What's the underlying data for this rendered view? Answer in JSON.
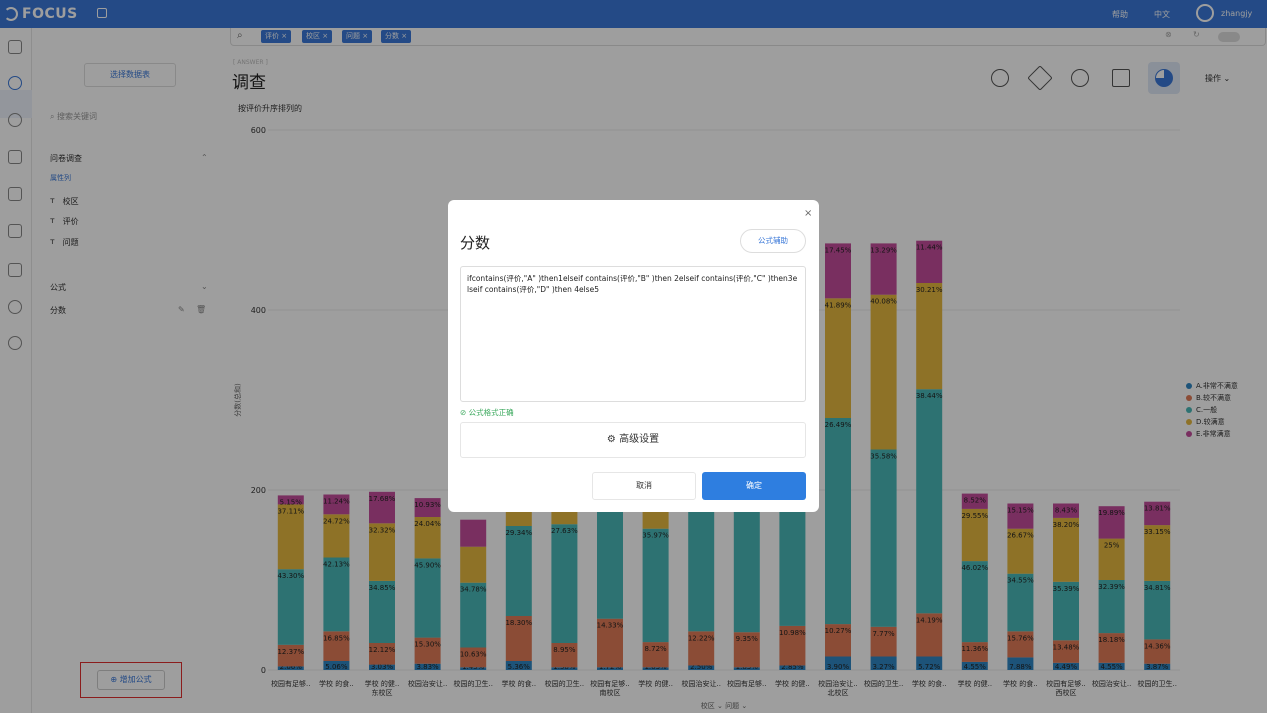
{
  "app": {
    "logo": "FOCUS",
    "help": "帮助",
    "language": "中文",
    "username": "zhangjy"
  },
  "sidebar": {
    "select_data_label": "选择数据表",
    "search_placeholder": "搜索关键词",
    "table_section": "问卷调查",
    "attribute_label": "属性列",
    "fields": [
      "校区",
      "评价",
      "问题"
    ],
    "field_type_icon": "T-icon",
    "formula_section": "公式",
    "formulas": [
      {
        "name": "分数"
      }
    ],
    "add_formula_label": "增加公式"
  },
  "search_chips": [
    "评价 ×",
    "校区 ×",
    "问题 ×",
    "分数 ×"
  ],
  "main": {
    "answer_tag": "[ ANSWER ]",
    "title": "调查",
    "operate_label": "操作",
    "sort_note": "按评价升序排列的",
    "toolbar_icons": [
      "comment-icon",
      "pin-icon",
      "settings-icon",
      "table-icon",
      "pie-chart-icon"
    ]
  },
  "chart_data": {
    "type": "stacked-bar",
    "ylabel": "分数(总和)",
    "ylim": [
      0,
      600
    ],
    "yticks": [
      0,
      200,
      400,
      600
    ],
    "grid": true,
    "legend_position": "right",
    "categories": [
      "校园有足够..",
      "学校 的食..",
      "学校 的健..",
      "校园治安让..",
      "校园的卫生..",
      "学校 的食..",
      "校园的卫生..",
      "校园有足够..",
      "学校 的健..",
      "校园治安让..",
      "校园有足够..",
      "学校 的健..",
      "校园治安让..",
      "校园的卫生..",
      "学校 的食..",
      "学校 的健..",
      "学校 的食..",
      "校园有足够..",
      "校园治安让..",
      "校园的卫生.."
    ],
    "groups": [
      {
        "label": "东校区",
        "start": 0,
        "end": 4
      },
      {
        "label": "南校区",
        "start": 5,
        "end": 9
      },
      {
        "label": "北校区",
        "start": 10,
        "end": 14
      },
      {
        "label": "西校区",
        "start": 15,
        "end": 19
      }
    ],
    "x_axis_title": "校区 ⌄ 问题 ⌄",
    "colors": [
      "#2f86c3",
      "#e07b57",
      "#4ab9b9",
      "#e5b840",
      "#c34c9c"
    ],
    "series": [
      {
        "name": "A.非常不满意",
        "values": [
          4,
          10,
          6,
          7,
          3,
          10,
          3,
          3,
          3,
          5,
          3,
          5,
          15,
          15,
          15,
          9,
          14,
          8,
          8,
          7
        ],
        "labels": [
          "2.06%",
          "5.06%",
          "3.03%",
          "3.83%",
          "1.45%",
          "5.36%",
          "1.58%",
          "1.72%",
          "1.63%",
          "2.50%",
          "1.83%",
          "2.85%",
          "3.90%",
          "3.27%",
          "5.72%",
          "4.55%",
          "7.88%",
          "4.49%",
          "4.55%",
          "3.87%"
        ]
      },
      {
        "name": "B.较不满意",
        "values": [
          24,
          33,
          24,
          29,
          22,
          50,
          27,
          54,
          28,
          38,
          39,
          44,
          36,
          33,
          48,
          22,
          29,
          25,
          33,
          27
        ]
      },
      {
        "name": "C.一般",
        "values": [
          84,
          82,
          69,
          88,
          72,
          100,
          132,
          316,
          126,
          148,
          308,
          304,
          229,
          197,
          249,
          90,
          64,
          65,
          59,
          65
        ]
      },
      {
        "name": "D.较满意",
        "values": [
          72,
          48,
          64,
          46,
          40,
          66,
          56,
          26,
          90,
          35,
          10,
          10,
          133,
          172,
          118,
          58,
          50,
          71,
          46,
          62
        ]
      },
      {
        "name": "E.非常满意",
        "values": [
          10,
          22,
          35,
          21,
          30,
          0,
          0,
          0,
          0,
          0,
          0,
          0,
          61,
          57,
          47,
          17,
          28,
          16,
          36,
          26
        ]
      }
    ],
    "segment_labels": {
      "B.较不满意": [
        "12.37%",
        "16.85%",
        "12.12%",
        "15.30%",
        "10.63%",
        "18.30%",
        "8.95%",
        "14.33%",
        "8.72%",
        "12.22%",
        "9.35%",
        "10.98%",
        "10.27%",
        "7.77%",
        "14.19%",
        "11.36%",
        "15.76%",
        "13.48%",
        "18.18%",
        "14.36%"
      ],
      "C.一般": [
        "43.30%",
        "42.13%",
        "34.85%",
        "45.90%",
        "34.78%",
        "29.34%",
        "27.63%",
        "",
        "35.97%",
        "26.67%",
        "",
        "",
        "26.49%",
        "35.58%",
        "38.44%",
        "46.02%",
        "34.55%",
        "35.39%",
        "32.39%",
        "34.81%"
      ],
      "D.较满意": [
        "37.11%",
        "24.72%",
        "32.32%",
        "24.04%",
        "",
        "",
        "",
        "",
        "",
        "",
        "",
        "",
        "41.89%",
        "40.08%",
        "30.21%",
        "29.55%",
        "26.67%",
        "38.20%",
        "25%",
        "33.15%"
      ],
      "E.非常满意": [
        "5.15%",
        "11.24%",
        "17.68%",
        "10.93%",
        "",
        "",
        "",
        "",
        "",
        "",
        "",
        "",
        "17.45%",
        "13.29%",
        "11.44%",
        "8.52%",
        "15.15%",
        "8.43%",
        "19.89%",
        "13.81%"
      ]
    }
  },
  "modal": {
    "title": "分数",
    "helper_label": "公式辅助",
    "formula": "ifcontains(评价,\"A\" )then1elseif contains(评价,\"B\" )then 2elseif contains(评价,\"C\" )then3elseif contains(评价,\"D\" )then 4else5",
    "validation": "公式格式正确",
    "advanced_label": "高级设置",
    "cancel_label": "取消",
    "confirm_label": "确定",
    "close_label": "×"
  }
}
